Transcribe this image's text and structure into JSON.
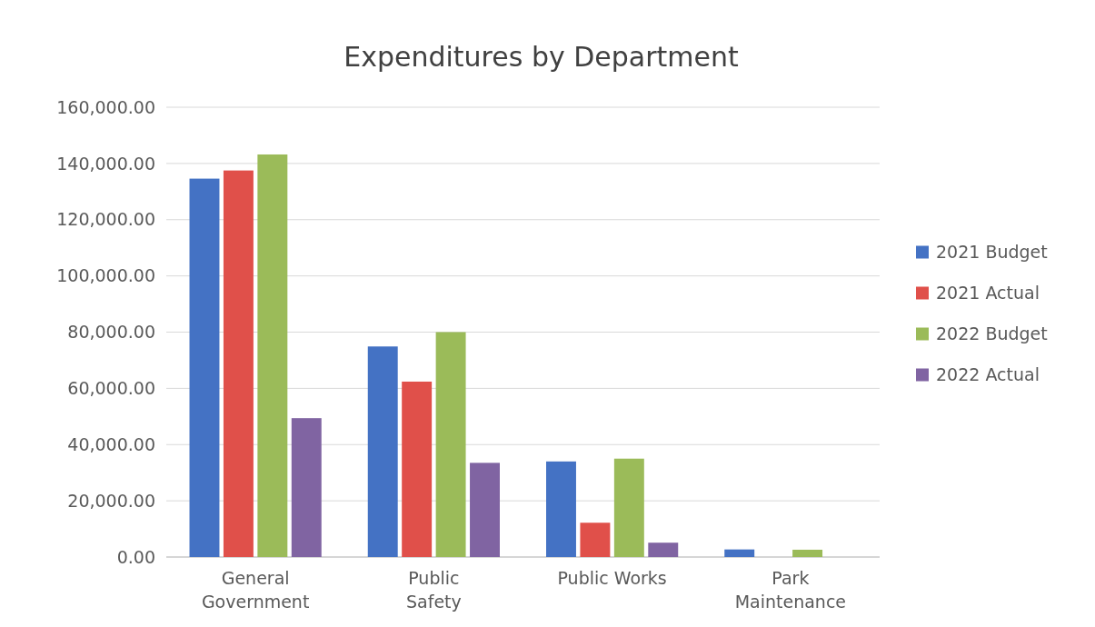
{
  "chart_data": {
    "type": "bar",
    "title": "Expenditures by Department",
    "categories": [
      "General Government",
      "Public Safety",
      "Public Works",
      "Park Maintenance"
    ],
    "series": [
      {
        "name": "2021 Budget",
        "color": "#4472c4",
        "values": [
          134600,
          74900,
          34000,
          2700
        ]
      },
      {
        "name": "2021 Actual",
        "color": "#e0504a",
        "values": [
          137500,
          62400,
          12200,
          0
        ]
      },
      {
        "name": "2022 Budget",
        "color": "#9bbb59",
        "values": [
          143200,
          80000,
          35000,
          2600
        ]
      },
      {
        "name": "2022 Actual",
        "color": "#8064a2",
        "values": [
          49400,
          33500,
          5100,
          0
        ]
      }
    ],
    "ylim": [
      0,
      160000
    ],
    "yticks": [
      {
        "value": 0,
        "label": "0.00"
      },
      {
        "value": 20000,
        "label": "20,000.00"
      },
      {
        "value": 40000,
        "label": "40,000.00"
      },
      {
        "value": 60000,
        "label": "60,000.00"
      },
      {
        "value": 80000,
        "label": "80,000.00"
      },
      {
        "value": 100000,
        "label": "100,000.00"
      },
      {
        "value": 120000,
        "label": "120,000.00"
      },
      {
        "value": 140000,
        "label": "140,000.00"
      },
      {
        "value": 160000,
        "label": "160,000.00"
      }
    ],
    "grid": "y",
    "legend": "right"
  }
}
